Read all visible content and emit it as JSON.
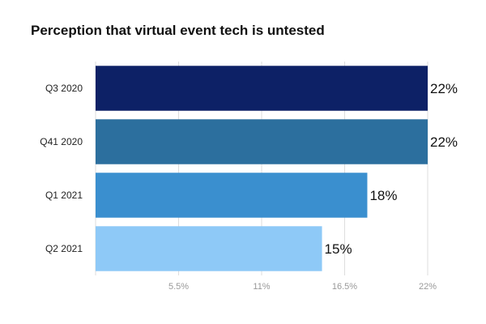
{
  "chart_data": {
    "type": "bar",
    "orientation": "horizontal",
    "title": "Perception that virtual event tech is untested",
    "categories": [
      "Q3 2020",
      "Q41 2020",
      "Q1 2021",
      "Q2 2021"
    ],
    "values": [
      22,
      22,
      18,
      15
    ],
    "value_labels": [
      "22%",
      "22%",
      "18%",
      "15%"
    ],
    "bar_colors": [
      "#0d2166",
      "#2c6f9e",
      "#3a8fcf",
      "#8ec9f7"
    ],
    "xlim": [
      0,
      22
    ],
    "xticks": [
      5.5,
      11,
      16.5,
      22
    ],
    "xtick_labels": [
      "5.5%",
      "11%",
      "16.5%",
      "22%"
    ],
    "grid": true,
    "legend": "none"
  }
}
